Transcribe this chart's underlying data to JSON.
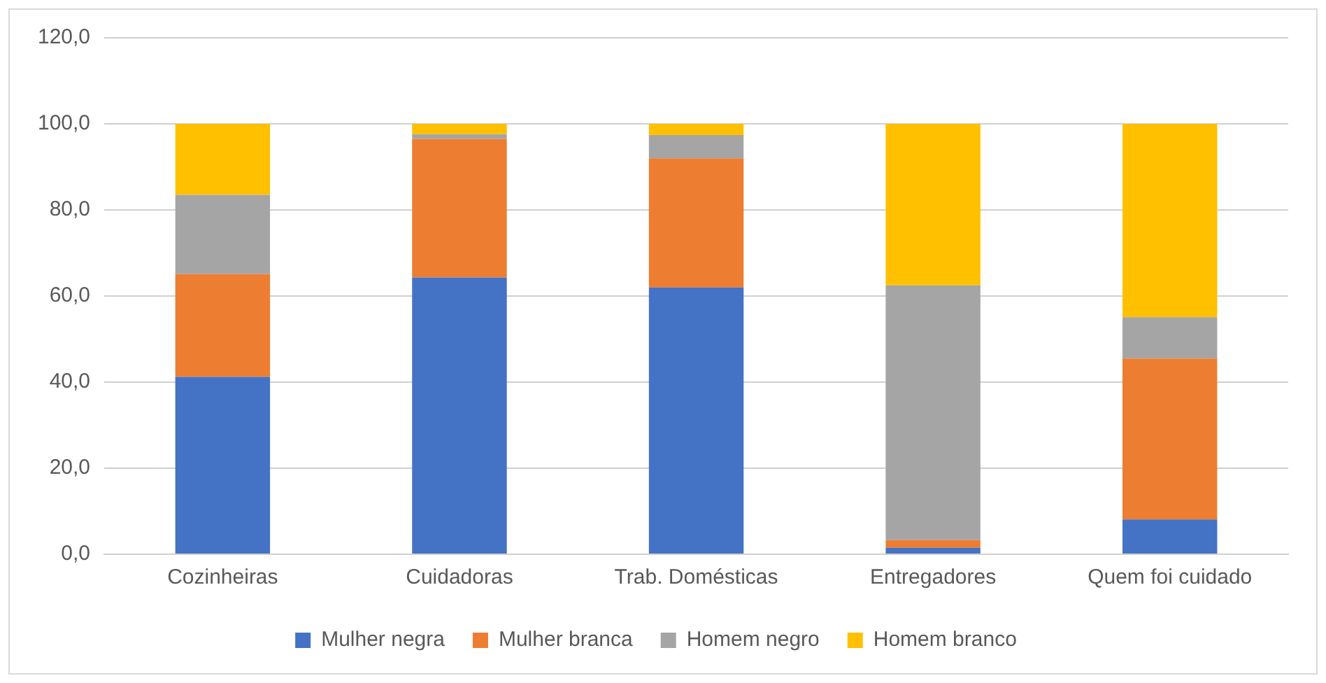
{
  "chart_data": {
    "type": "bar",
    "stacked": true,
    "categories": [
      "Cozinheiras",
      "Cuidadoras",
      "Trab. Domésticas",
      "Entregadores",
      "Quem foi cuidado"
    ],
    "series": [
      {
        "name": "Mulher negra",
        "color": "#4472c4",
        "values": [
          41.2,
          64.3,
          62.0,
          1.5,
          8.1
        ]
      },
      {
        "name": "Mulher branca",
        "color": "#ed7d31",
        "values": [
          23.9,
          32.2,
          30.0,
          1.8,
          37.4
        ]
      },
      {
        "name": "Homem negro",
        "color": "#a5a5a5",
        "values": [
          18.4,
          1.1,
          5.4,
          59.2,
          9.6
        ]
      },
      {
        "name": "Homem branco",
        "color": "#ffc000",
        "values": [
          16.5,
          2.4,
          2.6,
          37.5,
          44.9
        ]
      }
    ],
    "ylim": [
      0,
      120
    ],
    "yticks": [
      {
        "value": 0,
        "label": "0,0"
      },
      {
        "value": 20,
        "label": "20,0"
      },
      {
        "value": 40,
        "label": "40,0"
      },
      {
        "value": 60,
        "label": "60,0"
      },
      {
        "value": 80,
        "label": "80,0"
      },
      {
        "value": 100,
        "label": "100,0"
      },
      {
        "value": 120,
        "label": "120,0"
      }
    ],
    "grid": "y",
    "legend": "bottom"
  }
}
